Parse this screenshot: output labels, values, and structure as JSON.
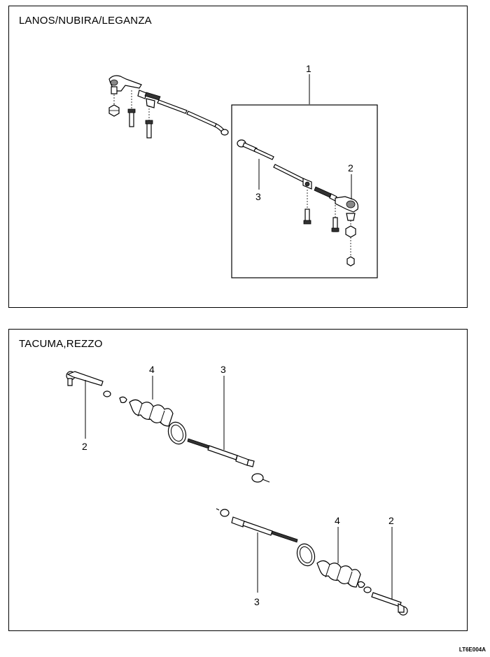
{
  "panels": [
    {
      "title": "LANOS/NUBIRA/LEGANZA"
    },
    {
      "title": "TACUMA,REZZO"
    }
  ],
  "callouts": {
    "top": [
      "1",
      "2",
      "3"
    ],
    "bottom": [
      "4",
      "3",
      "2",
      "4",
      "2",
      "3"
    ]
  },
  "reference_code": "LT6E004A",
  "icons": [
    "tie-rod-end",
    "adjusting-sleeve",
    "inner-tie-rod",
    "boot",
    "clamp",
    "nut",
    "bolt"
  ]
}
